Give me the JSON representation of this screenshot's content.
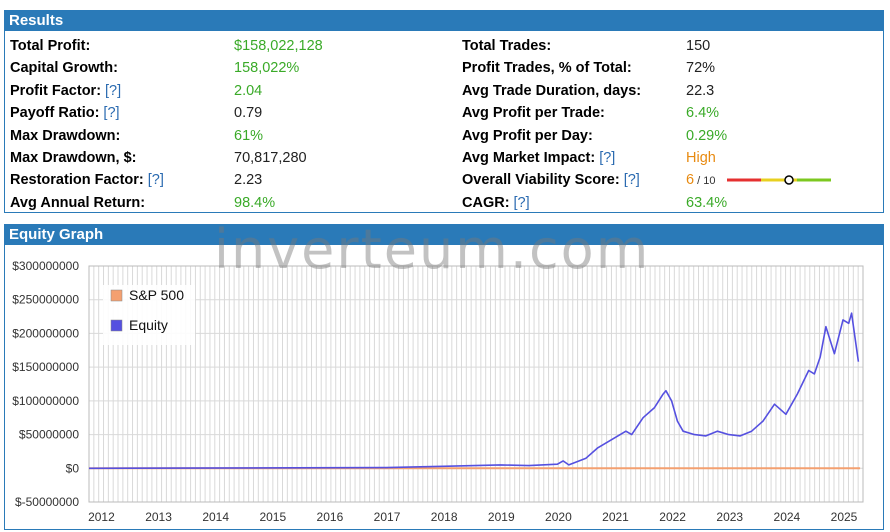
{
  "results": {
    "title": "Results",
    "help": "[?]",
    "left": [
      {
        "label": "Total Profit:",
        "value": "$158,022,128",
        "color": "#3aaa28",
        "help": false
      },
      {
        "label": "Capital Growth:",
        "value": "158,022%",
        "color": "#3aaa28",
        "help": false
      },
      {
        "label": "Profit Factor:",
        "value": "2.04",
        "color": "#3aaa28",
        "help": true
      },
      {
        "label": "Payoff Ratio:",
        "value": "0.79",
        "color": "#222222",
        "help": true
      },
      {
        "label": "Max Drawdown:",
        "value": "61%",
        "color": "#3aaa28",
        "help": false
      },
      {
        "label": "Max Drawdown, $:",
        "value": "70,817,280",
        "color": "#222222",
        "help": false
      },
      {
        "label": "Restoration Factor:",
        "value": "2.23",
        "color": "#222222",
        "help": true
      },
      {
        "label": "Avg Annual Return:",
        "value": "98.4%",
        "color": "#3aaa28",
        "help": false
      }
    ],
    "right": [
      {
        "label": "Total Trades:",
        "value": "150",
        "color": "#222222",
        "help": false
      },
      {
        "label": "Profit Trades, % of Total:",
        "value": "72%",
        "color": "#222222",
        "help": false
      },
      {
        "label": "Avg Trade Duration, days:",
        "value": "22.3",
        "color": "#222222",
        "help": false
      },
      {
        "label": "Avg Profit per Trade:",
        "value": "6.4%",
        "color": "#3aaa28",
        "help": false
      },
      {
        "label": "Avg Profit per Day:",
        "value": "0.29%",
        "color": "#3aaa28",
        "help": false
      },
      {
        "label": "Avg Market Impact:",
        "value": "High",
        "color": "#e88a10",
        "help": true
      },
      {
        "label": "Overall Viability Score:",
        "value": "6",
        "color": "#e88a10",
        "help": true,
        "suffix": "/ 10",
        "viability": 0.6
      },
      {
        "label": "CAGR:",
        "value": "63.4%",
        "color": "#3aaa28",
        "help": true
      }
    ]
  },
  "equity": {
    "title": "Equity Graph",
    "watermark": "inverteum.com"
  },
  "chart_data": {
    "type": "line",
    "title": "",
    "xlabel": "",
    "ylabel": "",
    "ylim": [
      -50000000,
      300000000
    ],
    "xlim": [
      2011.8,
      2025.35
    ],
    "y_ticks": [
      300000000,
      250000000,
      200000000,
      150000000,
      100000000,
      50000000,
      0,
      -50000000
    ],
    "y_tick_labels": [
      "$300000000",
      "$250000000",
      "$200000000",
      "$150000000",
      "$100000000",
      "$50000000",
      "$0",
      "$-50000000"
    ],
    "x_ticks": [
      2012,
      2013,
      2014,
      2015,
      2016,
      2017,
      2018,
      2019,
      2020,
      2021,
      2022,
      2023,
      2024,
      2025
    ],
    "x_tick_labels": [
      "2012",
      "2013",
      "2014",
      "2015",
      "2016",
      "2017",
      "2018",
      "2019",
      "2020",
      "2021",
      "2022",
      "2023",
      "2024",
      "2025"
    ],
    "grid": true,
    "legend": "top-left",
    "series": [
      {
        "name": "S&P 500",
        "color": "#f4a070",
        "x": [
          2011.8,
          2025.3
        ],
        "y": [
          0,
          0
        ]
      },
      {
        "name": "Equity",
        "color": "#5550e0",
        "x": [
          2011.8,
          2017.0,
          2018.0,
          2019.0,
          2019.5,
          2020.0,
          2020.1,
          2020.2,
          2020.5,
          2020.7,
          2021.0,
          2021.2,
          2021.3,
          2021.5,
          2021.7,
          2021.85,
          2021.9,
          2022.0,
          2022.1,
          2022.2,
          2022.4,
          2022.6,
          2022.8,
          2023.0,
          2023.2,
          2023.4,
          2023.6,
          2023.8,
          2024.0,
          2024.2,
          2024.4,
          2024.5,
          2024.6,
          2024.7,
          2024.85,
          2025.0,
          2025.1,
          2025.15,
          2025.2,
          2025.27
        ],
        "y": [
          0,
          1000000,
          3000000,
          5000000,
          4000000,
          6000000,
          11000000,
          5000000,
          15000000,
          30000000,
          45000000,
          55000000,
          50000000,
          75000000,
          90000000,
          110000000,
          115000000,
          100000000,
          70000000,
          55000000,
          50000000,
          48000000,
          55000000,
          50000000,
          48000000,
          55000000,
          70000000,
          95000000,
          80000000,
          110000000,
          145000000,
          140000000,
          165000000,
          210000000,
          170000000,
          220000000,
          215000000,
          230000000,
          200000000,
          158000000
        ]
      }
    ]
  }
}
